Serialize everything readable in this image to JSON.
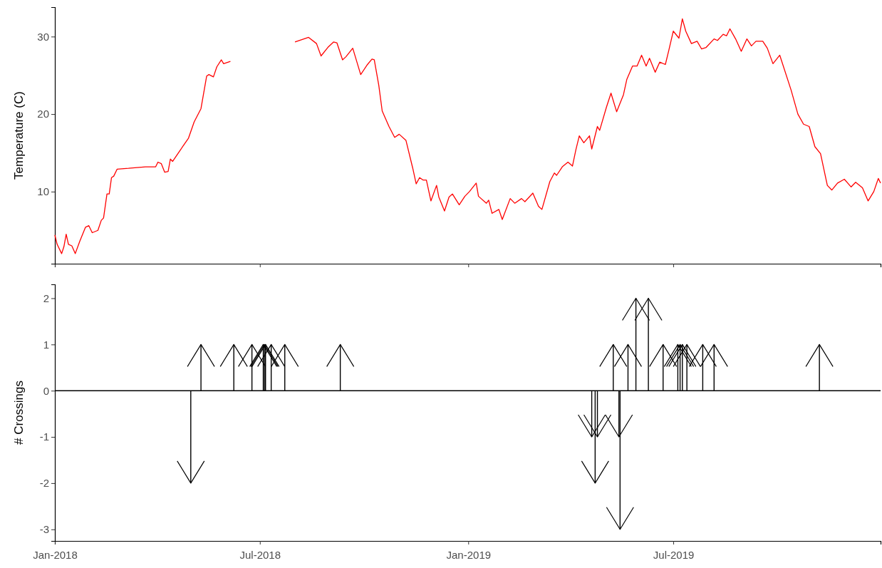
{
  "chart_data": [
    {
      "type": "line",
      "ylabel": "Temperature (C)",
      "xlim": [
        "2018-01-01",
        "2019-12-31"
      ],
      "xticks": [
        {
          "value": "2018-01-01",
          "label": null
        },
        {
          "value": "2018-07-01",
          "label": null
        },
        {
          "value": "2019-01-01",
          "label": null
        },
        {
          "value": "2019-07-01",
          "label": null
        }
      ],
      "ylim": [
        0.7,
        33.8
      ],
      "yticks": [
        10,
        20,
        30
      ],
      "tick_labels": "y",
      "x": [
        "2018-01-01",
        "2018-01-03",
        "2018-01-07",
        "2018-01-09",
        "2018-01-11",
        "2018-01-13",
        "2018-01-16",
        "2018-01-19",
        "2018-01-23",
        "2018-01-28",
        "2018-01-31",
        "2018-02-03",
        "2018-02-08",
        "2018-02-11",
        "2018-02-13",
        "2018-02-16",
        "2018-02-18",
        "2018-02-20",
        "2018-02-22",
        "2018-02-25",
        "2018-03-07",
        "2018-03-22",
        "2018-03-31",
        "2018-04-02",
        "2018-04-05",
        "2018-04-08",
        "2018-04-11",
        "2018-04-13",
        "2018-04-15",
        "2018-04-21",
        "2018-04-29",
        "2018-05-04",
        "2018-05-10",
        "2018-05-15",
        "2018-05-17",
        "2018-05-21",
        "2018-05-24",
        "2018-05-28",
        "2018-05-30",
        "2018-06-05",
        "2018-07-01",
        "2018-08-01",
        "2018-08-13",
        "2018-08-20",
        "2018-08-24",
        "2018-08-30",
        "2018-09-04",
        "2018-09-07",
        "2018-09-12",
        "2018-09-15",
        "2018-09-21",
        "2018-09-28",
        "2018-10-04",
        "2018-10-08",
        "2018-10-10",
        "2018-10-14",
        "2018-10-17",
        "2018-10-23",
        "2018-10-28",
        "2018-11-01",
        "2018-11-07",
        "2018-11-13",
        "2018-11-16",
        "2018-11-19",
        "2018-11-22",
        "2018-11-25",
        "2018-11-29",
        "2018-12-04",
        "2018-12-06",
        "2018-12-11",
        "2018-12-15",
        "2018-12-18",
        "2018-12-24",
        "2018-12-29",
        "2019-01-02",
        "2019-01-08",
        "2019-01-10",
        "2019-01-17",
        "2019-01-19",
        "2019-01-22",
        "2019-01-28",
        "2019-01-31",
        "2019-02-07",
        "2019-02-11",
        "2019-02-17",
        "2019-02-20",
        "2019-02-27",
        "2019-03-04",
        "2019-03-07",
        "2019-03-14",
        "2019-03-18",
        "2019-03-20",
        "2019-03-25",
        "2019-03-30",
        "2019-04-03",
        "2019-04-06",
        "2019-04-09",
        "2019-04-13",
        "2019-04-18",
        "2019-04-20",
        "2019-04-25",
        "2019-04-27",
        "2019-05-03",
        "2019-05-07",
        "2019-05-12",
        "2019-05-18",
        "2019-05-21",
        "2019-05-26",
        "2019-05-30",
        "2019-06-03",
        "2019-06-07",
        "2019-06-10",
        "2019-06-15",
        "2019-06-19",
        "2019-06-24",
        "2019-06-27",
        "2019-07-01",
        "2019-07-06",
        "2019-07-09",
        "2019-07-12",
        "2019-07-17",
        "2019-07-22",
        "2019-07-26",
        "2019-07-30",
        "2019-08-06",
        "2019-08-09",
        "2019-08-14",
        "2019-08-17",
        "2019-08-20",
        "2019-08-25",
        "2019-08-30",
        "2019-09-04",
        "2019-09-08",
        "2019-09-12",
        "2019-09-18",
        "2019-09-22",
        "2019-09-27",
        "2019-10-03",
        "2019-10-13",
        "2019-10-19",
        "2019-10-24",
        "2019-10-29",
        "2019-11-03",
        "2019-11-08",
        "2019-11-14",
        "2019-11-18",
        "2019-11-23",
        "2019-11-29",
        "2019-12-05",
        "2019-12-09",
        "2019-12-15",
        "2019-12-20",
        "2019-12-25",
        "2019-12-29",
        "2019-12-31"
      ],
      "series": [
        {
          "color": "#ff0000",
          "values": [
            4.4,
            3.2,
            2.0,
            2.9,
            4.5,
            3.2,
            3.0,
            2.0,
            3.6,
            5.4,
            5.6,
            4.7,
            5.0,
            6.3,
            6.6,
            9.7,
            9.7,
            11.8,
            12.0,
            12.9,
            13.0,
            13.2,
            13.2,
            13.8,
            13.6,
            12.5,
            12.6,
            14.2,
            13.9,
            15.2,
            16.9,
            19.0,
            20.7,
            24.9,
            25.1,
            24.8,
            26.1,
            27.0,
            26.5,
            26.8,
            null,
            29.3,
            29.9,
            29.1,
            27.5,
            28.6,
            29.3,
            29.2,
            27.0,
            27.4,
            28.5,
            25.1,
            26.4,
            27.1,
            27.0,
            23.7,
            20.4,
            18.4,
            17.0,
            17.4,
            16.6,
            13.0,
            11.0,
            11.8,
            11.5,
            11.5,
            8.8,
            10.8,
            9.3,
            7.5,
            9.3,
            9.7,
            8.3,
            9.4,
            10.0,
            11.1,
            9.4,
            8.5,
            8.9,
            7.2,
            7.7,
            6.4,
            9.1,
            8.5,
            9.1,
            8.7,
            9.8,
            8.1,
            7.7,
            11.3,
            12.4,
            12.1,
            13.2,
            13.8,
            13.3,
            15.4,
            17.2,
            16.3,
            17.2,
            15.5,
            18.4,
            17.9,
            20.9,
            22.7,
            20.3,
            22.5,
            24.5,
            26.2,
            26.2,
            27.6,
            26.2,
            27.2,
            25.4,
            26.7,
            26.4,
            28.2,
            30.7,
            29.8,
            32.3,
            30.7,
            29.1,
            29.4,
            28.4,
            28.6,
            29.7,
            29.5,
            30.3,
            30.1,
            31.0,
            29.7,
            28.1,
            29.7,
            28.8,
            29.4,
            29.4,
            28.5,
            26.5,
            27.6,
            23.1,
            20.0,
            18.7,
            18.4,
            15.8,
            14.9,
            10.8,
            10.2,
            11.1,
            11.6,
            10.6,
            11.2,
            10.5,
            8.8,
            10.0,
            11.7,
            11.1
          ]
        }
      ]
    },
    {
      "type": "bar",
      "ylabel": "# Crossings",
      "xlim": [
        "2018-01-01",
        "2019-12-31"
      ],
      "xticks": [
        {
          "value": "2018-01-01",
          "label": "Jan-2018"
        },
        {
          "value": "2018-07-01",
          "label": "Jul-2018"
        },
        {
          "value": "2019-01-01",
          "label": "Jan-2019"
        },
        {
          "value": "2019-07-01",
          "label": "Jul-2019"
        }
      ],
      "ylim": [
        -3.25,
        2.3
      ],
      "yticks": [
        -3,
        -2,
        -1,
        0,
        1,
        2
      ],
      "x": [
        "2018-05-01",
        "2018-05-10",
        "2018-06-08",
        "2018-06-24",
        "2018-07-04",
        "2018-07-05",
        "2018-07-06",
        "2018-07-11",
        "2018-07-23",
        "2018-09-10",
        "2019-04-20",
        "2019-04-23",
        "2019-04-25",
        "2019-05-09",
        "2019-05-14",
        "2019-05-15",
        "2019-05-22",
        "2019-05-29",
        "2019-06-09",
        "2019-06-22",
        "2019-07-05",
        "2019-07-07",
        "2019-07-09",
        "2019-07-13",
        "2019-07-27",
        "2019-08-06",
        "2019-11-07"
      ],
      "series": [
        {
          "color": "#000000",
          "values": [
            -2,
            1,
            1,
            1,
            1,
            1,
            1,
            1,
            1,
            1,
            -1,
            -2,
            -1,
            1,
            -1,
            -3,
            1,
            2,
            2,
            1,
            1,
            1,
            1,
            1,
            1,
            1,
            1
          ]
        }
      ],
      "ref_lines": [
        {
          "axis": "y",
          "value": 0,
          "color": "#000000"
        }
      ]
    }
  ]
}
